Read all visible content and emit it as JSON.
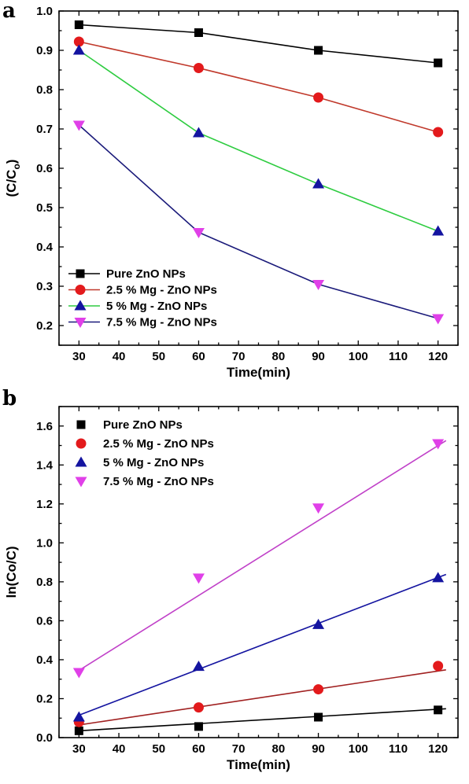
{
  "chart_data": [
    {
      "panel": "a",
      "type": "line",
      "xlabel": "Time(min)",
      "ylabel": "(C/C",
      "ylabel_sub": "o",
      "ylabel_close": ")",
      "xlim": [
        25,
        125
      ],
      "ylim": [
        0.15,
        1.0
      ],
      "xticks": [
        30,
        40,
        50,
        60,
        70,
        80,
        90,
        100,
        110,
        120
      ],
      "yticks": [
        0.2,
        0.3,
        0.4,
        0.5,
        0.6,
        0.7,
        0.8,
        0.9,
        1.0
      ],
      "ytick_decimals": 1,
      "legend_position": "bottom-left",
      "x": [
        30,
        60,
        90,
        120
      ],
      "series": [
        {
          "name": "Pure ZnO NPs",
          "values": [
            0.965,
            0.945,
            0.9,
            0.868
          ],
          "color": "#000000",
          "marker": "square"
        },
        {
          "name": "2.5 % Mg - ZnO NPs",
          "values": [
            0.922,
            0.855,
            0.78,
            0.692
          ],
          "color": "#c0392b",
          "marker": "circle"
        },
        {
          "name": "5 % Mg - ZnO NPs",
          "values": [
            0.9,
            0.69,
            0.56,
            0.44
          ],
          "color": "#2ecc40",
          "marker": "triangle-up"
        },
        {
          "name": "7.5 % Mg - ZnO NPs",
          "values": [
            0.71,
            0.437,
            0.305,
            0.218
          ],
          "color": "#1a1a7a",
          "marker": "triangle-down"
        }
      ],
      "marker_colors": [
        "#000000",
        "#e31a1c",
        "#1414a0",
        "#e040e8"
      ]
    },
    {
      "panel": "b",
      "type": "scatter",
      "xlabel": "Time(min)",
      "ylabel": "ln(Co/C)",
      "xlim": [
        25,
        125
      ],
      "ylim": [
        0.0,
        1.7
      ],
      "xticks": [
        30,
        40,
        50,
        60,
        70,
        80,
        90,
        100,
        110,
        120
      ],
      "yticks": [
        0.0,
        0.2,
        0.4,
        0.6,
        0.8,
        1.0,
        1.2,
        1.4,
        1.6
      ],
      "ytick_decimals": 1,
      "legend_position": "top-left",
      "x": [
        30,
        60,
        90,
        120
      ],
      "series": [
        {
          "name": "Pure ZnO NPs",
          "values": [
            0.035,
            0.057,
            0.105,
            0.142
          ],
          "color": "#000000",
          "marker": "square",
          "fit": [
            [
              30,
              0.035
            ],
            [
              122,
              0.148
            ]
          ]
        },
        {
          "name": "2.5 % Mg - ZnO NPs",
          "values": [
            0.08,
            0.155,
            0.248,
            0.368
          ],
          "color": "#e31a1c",
          "marker": "circle",
          "fit": [
            [
              30,
              0.065
            ],
            [
              122,
              0.348
            ]
          ]
        },
        {
          "name": "5 % Mg - ZnO NPs",
          "values": [
            0.105,
            0.365,
            0.58,
            0.82
          ],
          "color": "#1414a0",
          "marker": "triangle-up",
          "fit": [
            [
              30,
              0.115
            ],
            [
              122,
              0.838
            ]
          ]
        },
        {
          "name": "7.5 % Mg - ZnO NPs",
          "values": [
            0.335,
            0.82,
            1.18,
            1.51
          ],
          "color": "#e040e8",
          "marker": "triangle-down",
          "fit": [
            [
              30,
              0.345
            ],
            [
              122,
              1.525
            ]
          ]
        }
      ],
      "line_colors": [
        "#000000",
        "#a02020",
        "#1414a0",
        "#c040c8"
      ]
    }
  ]
}
